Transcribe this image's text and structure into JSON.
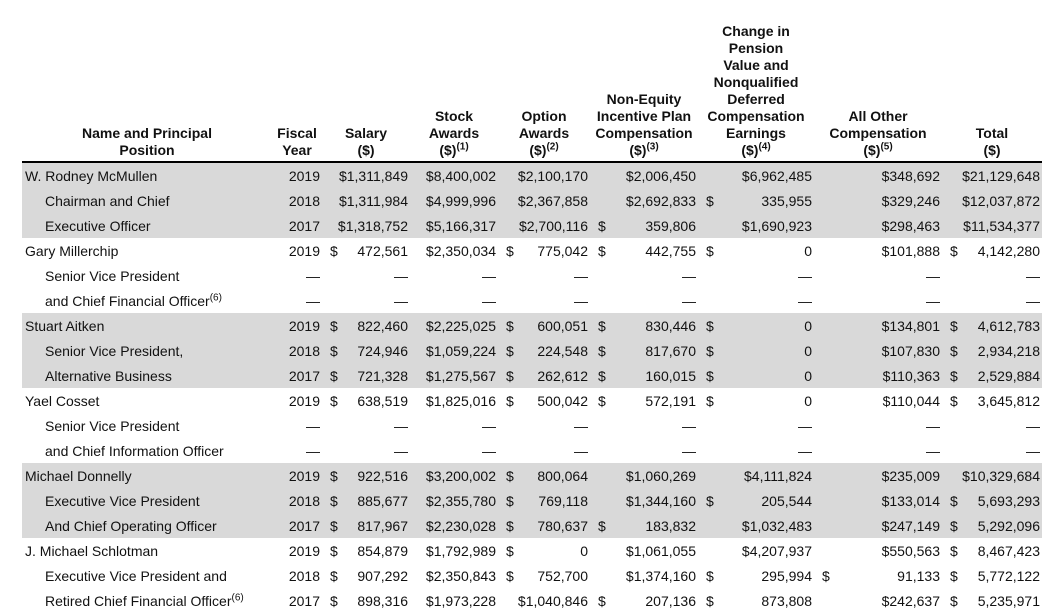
{
  "table": {
    "columns": [
      {
        "lines": [
          "Name and Principal",
          "Position"
        ]
      },
      {
        "lines": [
          "Fiscal",
          "Year"
        ]
      },
      {
        "lines": [
          "Salary",
          "($)"
        ]
      },
      {
        "lines": [
          "Stock",
          "Awards",
          "($)"
        ],
        "note": "(1)"
      },
      {
        "lines": [
          "Option",
          "Awards",
          "($)"
        ],
        "note": "(2)"
      },
      {
        "lines": [
          "Non-Equity",
          "Incentive Plan",
          "Compensation",
          "($)"
        ],
        "note": "(3)"
      },
      {
        "lines": [
          "Change in",
          "Pension",
          "Value and",
          "Nonqualified",
          "Deferred",
          "Compensation",
          "Earnings",
          "($)"
        ],
        "note": "(4)"
      },
      {
        "lines": [
          "All Other",
          "Compensation",
          "($)"
        ],
        "note": "(5)"
      },
      {
        "lines": [
          "Total",
          "($)"
        ]
      }
    ],
    "groups": [
      {
        "rows": [
          {
            "label": "W. Rodney McMullen",
            "cells": [
              "2019",
              "$1,311,849",
              "$8,400,002",
              "$2,100,170",
              "$2,006,450",
              "$6,962,485",
              "$348,692",
              "$21,129,648"
            ]
          },
          {
            "label": "Chairman and Chief",
            "cells": [
              "2018",
              "$1,311,984",
              "$4,999,996",
              "$2,367,858",
              "$2,692,833",
              [
                "$",
                "335,955"
              ],
              "$329,246",
              "$12,037,872"
            ]
          },
          {
            "label": "Executive Officer",
            "cells": [
              "2017",
              "$1,318,752",
              "$5,166,317",
              "$2,700,116",
              [
                "$",
                "359,806"
              ],
              "$1,690,923",
              "$298,463",
              "$11,534,377"
            ]
          }
        ]
      },
      {
        "rows": [
          {
            "label": "Gary Millerchip",
            "cells": [
              "2019",
              [
                "$",
                "472,561"
              ],
              "$2,350,034",
              [
                "$",
                "775,042"
              ],
              [
                "$",
                "442,755"
              ],
              [
                "$",
                "0"
              ],
              "$101,888",
              [
                "$",
                "4,142,280"
              ]
            ]
          },
          {
            "label": "Senior Vice President",
            "cells": [
              "—",
              "—",
              "—",
              "—",
              "—",
              "—",
              "—",
              "—"
            ]
          },
          {
            "label": "and Chief Financial Officer",
            "note": "(6)",
            "cells": [
              "—",
              "—",
              "—",
              "—",
              "—",
              "—",
              "—",
              "—"
            ]
          }
        ]
      },
      {
        "rows": [
          {
            "label": "Stuart Aitken",
            "cells": [
              "2019",
              [
                "$",
                "822,460"
              ],
              "$2,225,025",
              [
                "$",
                "600,051"
              ],
              [
                "$",
                "830,446"
              ],
              [
                "$",
                "0"
              ],
              "$134,801",
              [
                "$",
                "4,612,783"
              ]
            ]
          },
          {
            "label": "Senior Vice President,",
            "cells": [
              "2018",
              [
                "$",
                "724,946"
              ],
              "$1,059,224",
              [
                "$",
                "224,548"
              ],
              [
                "$",
                "817,670"
              ],
              [
                "$",
                "0"
              ],
              "$107,830",
              [
                "$",
                "2,934,218"
              ]
            ]
          },
          {
            "label": "Alternative Business",
            "cells": [
              "2017",
              [
                "$",
                "721,328"
              ],
              "$1,275,567",
              [
                "$",
                "262,612"
              ],
              [
                "$",
                "160,015"
              ],
              [
                "$",
                "0"
              ],
              "$110,363",
              [
                "$",
                "2,529,884"
              ]
            ]
          }
        ]
      },
      {
        "rows": [
          {
            "label": "Yael Cosset",
            "cells": [
              "2019",
              [
                "$",
                "638,519"
              ],
              "$1,825,016",
              [
                "$",
                "500,042"
              ],
              [
                "$",
                "572,191"
              ],
              [
                "$",
                "0"
              ],
              "$110,044",
              [
                "$",
                "3,645,812"
              ]
            ]
          },
          {
            "label": "Senior Vice President",
            "cells": [
              "—",
              "—",
              "—",
              "—",
              "—",
              "—",
              "—",
              "—"
            ]
          },
          {
            "label": "and Chief Information Officer",
            "cells": [
              "—",
              "—",
              "—",
              "—",
              "—",
              "—",
              "—",
              "—"
            ]
          }
        ]
      },
      {
        "rows": [
          {
            "label": "Michael Donnelly",
            "cells": [
              "2019",
              [
                "$",
                "922,516"
              ],
              "$3,200,002",
              [
                "$",
                "800,064"
              ],
              "$1,060,269",
              "$4,111,824",
              "$235,009",
              "$10,329,684"
            ]
          },
          {
            "label": "Executive Vice President",
            "cells": [
              "2018",
              [
                "$",
                "885,677"
              ],
              "$2,355,780",
              [
                "$",
                "769,118"
              ],
              "$1,344,160",
              [
                "$",
                "205,544"
              ],
              "$133,014",
              [
                "$",
                "5,693,293"
              ]
            ]
          },
          {
            "label": "And Chief Operating Officer",
            "cells": [
              "2017",
              [
                "$",
                "817,967"
              ],
              "$2,230,028",
              [
                "$",
                "780,637"
              ],
              [
                "$",
                "183,832"
              ],
              "$1,032,483",
              "$247,149",
              [
                "$",
                "5,292,096"
              ]
            ]
          }
        ]
      },
      {
        "rows": [
          {
            "label": "J. Michael Schlotman",
            "cells": [
              "2019",
              [
                "$",
                "854,879"
              ],
              "$1,792,989",
              [
                "$",
                "0"
              ],
              "$1,061,055",
              "$4,207,937",
              "$550,563",
              [
                "$",
                "8,467,423"
              ]
            ]
          },
          {
            "label": "Executive Vice President and",
            "cells": [
              "2018",
              [
                "$",
                "907,292"
              ],
              "$2,350,843",
              [
                "$",
                "752,700"
              ],
              "$1,374,160",
              [
                "$",
                "295,994"
              ],
              [
                "$",
                "91,133"
              ],
              [
                "$",
                "5,772,122"
              ]
            ]
          },
          {
            "label": "Retired Chief Financial Officer",
            "note": "(6)",
            "cells": [
              "2017",
              [
                "$",
                "898,316"
              ],
              "$1,973,228",
              "$1,040,846",
              [
                "$",
                "207,136"
              ],
              [
                "$",
                "873,808"
              ],
              "$242,637",
              [
                "$",
                "5,235,971"
              ]
            ]
          }
        ]
      }
    ]
  }
}
